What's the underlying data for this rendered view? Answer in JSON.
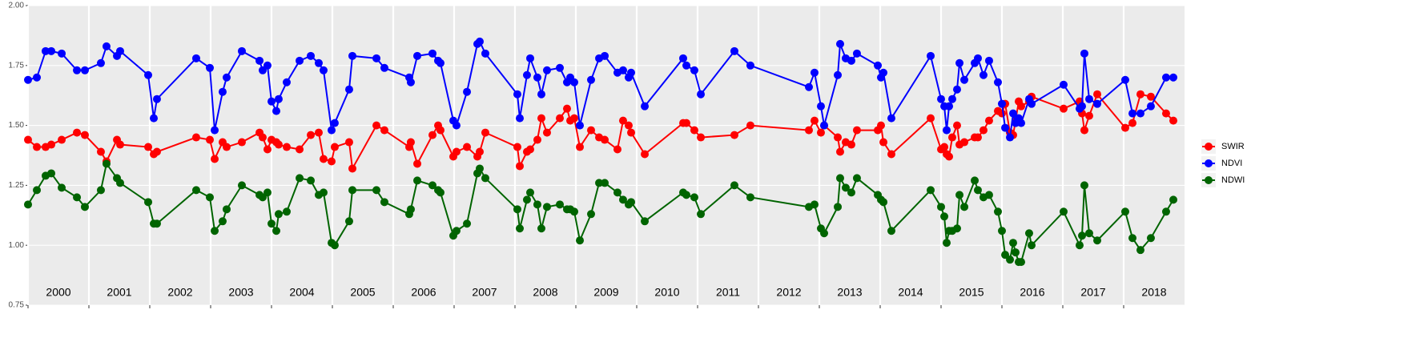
{
  "chart_data": {
    "type": "line",
    "x": [
      2000.0,
      2000.145,
      2000.289,
      2000.382,
      2000.553,
      2000.803,
      2000.934,
      2001.197,
      2001.289,
      2001.461,
      2001.513,
      2001.974,
      2002.066,
      2002.118,
      2002.763,
      2002.987,
      2003.066,
      2003.197,
      2003.263,
      2003.513,
      2003.803,
      2003.855,
      2003.934,
      2004.0,
      2004.079,
      2004.118,
      2004.25,
      2004.461,
      2004.645,
      2004.776,
      2004.855,
      2004.987,
      2005.039,
      2005.276,
      2005.329,
      2005.724,
      2005.855,
      2006.263,
      2006.289,
      2006.395,
      2006.645,
      2006.737,
      2006.776,
      2006.987,
      2007.039,
      2007.211,
      2007.382,
      2007.421,
      2007.513,
      2008.039,
      2008.079,
      2008.197,
      2008.25,
      2008.368,
      2008.434,
      2008.526,
      2008.737,
      2008.855,
      2008.908,
      2008.974,
      2009.066,
      2009.25,
      2009.382,
      2009.474,
      2009.684,
      2009.776,
      2009.868,
      2009.908,
      2010.132,
      2010.763,
      2010.816,
      2010.947,
      2011.053,
      2011.605,
      2011.868,
      2012.829,
      2012.921,
      2013.026,
      2013.079,
      2013.303,
      2013.342,
      2013.434,
      2013.526,
      2013.618,
      2013.961,
      2014.013,
      2014.053,
      2014.184,
      2014.829,
      2015.0,
      2015.053,
      2015.092,
      2015.132,
      2015.184,
      2015.263,
      2015.303,
      2015.382,
      2015.553,
      2015.605,
      2015.697,
      2015.789,
      2015.934,
      2016.0,
      2016.053,
      2016.132,
      2016.184,
      2016.224,
      2016.276,
      2016.316,
      2016.447,
      2016.487,
      2017.013,
      2017.276,
      2017.316,
      2017.355,
      2017.434,
      2017.566,
      2018.026,
      2018.145,
      2018.276,
      2018.447,
      2018.697,
      2018.816
    ],
    "series": [
      {
        "name": "SWIR",
        "color": "#ff0000",
        "values": [
          1.44,
          1.41,
          1.41,
          1.42,
          1.44,
          1.47,
          1.46,
          1.39,
          1.35,
          1.44,
          1.42,
          1.41,
          1.38,
          1.39,
          1.45,
          1.44,
          1.36,
          1.43,
          1.41,
          1.43,
          1.47,
          1.45,
          1.4,
          1.44,
          1.43,
          1.42,
          1.41,
          1.4,
          1.46,
          1.47,
          1.36,
          1.35,
          1.41,
          1.43,
          1.32,
          1.5,
          1.48,
          1.41,
          1.43,
          1.34,
          1.46,
          1.5,
          1.48,
          1.37,
          1.39,
          1.41,
          1.37,
          1.39,
          1.47,
          1.41,
          1.33,
          1.39,
          1.4,
          1.44,
          1.53,
          1.47,
          1.53,
          1.57,
          1.52,
          1.53,
          1.41,
          1.48,
          1.45,
          1.44,
          1.4,
          1.52,
          1.5,
          1.47,
          1.38,
          1.51,
          1.51,
          1.48,
          1.45,
          1.46,
          1.5,
          1.48,
          1.52,
          1.47,
          1.5,
          1.45,
          1.39,
          1.43,
          1.42,
          1.48,
          1.48,
          1.5,
          1.43,
          1.38,
          1.53,
          1.4,
          1.41,
          1.38,
          1.37,
          1.45,
          1.5,
          1.42,
          1.43,
          1.45,
          1.45,
          1.48,
          1.52,
          1.56,
          1.55,
          1.59,
          1.47,
          1.46,
          1.52,
          1.6,
          1.58,
          1.6,
          1.62,
          1.57,
          1.6,
          1.55,
          1.48,
          1.54,
          1.63,
          1.49,
          1.51,
          1.63,
          1.62,
          1.55,
          1.52
        ]
      },
      {
        "name": "NDVI",
        "color": "#0000ff",
        "values": [
          1.69,
          1.7,
          1.81,
          1.81,
          1.8,
          1.73,
          1.73,
          1.76,
          1.83,
          1.79,
          1.81,
          1.71,
          1.53,
          1.61,
          1.78,
          1.74,
          1.48,
          1.64,
          1.7,
          1.81,
          1.77,
          1.73,
          1.75,
          1.6,
          1.56,
          1.61,
          1.68,
          1.77,
          1.79,
          1.76,
          1.73,
          1.48,
          1.51,
          1.65,
          1.79,
          1.78,
          1.74,
          1.7,
          1.68,
          1.79,
          1.8,
          1.77,
          1.76,
          1.52,
          1.5,
          1.64,
          1.84,
          1.85,
          1.8,
          1.63,
          1.53,
          1.71,
          1.78,
          1.7,
          1.63,
          1.73,
          1.74,
          1.68,
          1.7,
          1.68,
          1.5,
          1.69,
          1.78,
          1.79,
          1.72,
          1.73,
          1.7,
          1.72,
          1.58,
          1.78,
          1.75,
          1.73,
          1.63,
          1.81,
          1.75,
          1.66,
          1.72,
          1.58,
          1.5,
          1.71,
          1.84,
          1.78,
          1.77,
          1.8,
          1.75,
          1.7,
          1.72,
          1.53,
          1.79,
          1.61,
          1.58,
          1.48,
          1.58,
          1.61,
          1.65,
          1.76,
          1.69,
          1.76,
          1.78,
          1.71,
          1.77,
          1.68,
          1.59,
          1.49,
          1.45,
          1.55,
          1.51,
          1.53,
          1.51,
          1.61,
          1.59,
          1.67,
          1.57,
          1.58,
          1.8,
          1.61,
          1.59,
          1.69,
          1.55,
          1.55,
          1.58,
          1.7,
          1.7
        ]
      },
      {
        "name": "NDWI",
        "color": "#006400",
        "values": [
          1.17,
          1.23,
          1.29,
          1.3,
          1.24,
          1.2,
          1.16,
          1.23,
          1.34,
          1.28,
          1.26,
          1.18,
          1.09,
          1.09,
          1.23,
          1.2,
          1.06,
          1.1,
          1.15,
          1.25,
          1.21,
          1.2,
          1.22,
          1.09,
          1.06,
          1.13,
          1.14,
          1.28,
          1.27,
          1.21,
          1.22,
          1.01,
          1.0,
          1.1,
          1.23,
          1.23,
          1.18,
          1.13,
          1.15,
          1.27,
          1.25,
          1.23,
          1.22,
          1.04,
          1.06,
          1.09,
          1.3,
          1.32,
          1.28,
          1.15,
          1.07,
          1.19,
          1.22,
          1.17,
          1.07,
          1.16,
          1.17,
          1.15,
          1.15,
          1.14,
          1.02,
          1.13,
          1.26,
          1.26,
          1.22,
          1.19,
          1.17,
          1.18,
          1.1,
          1.22,
          1.21,
          1.2,
          1.13,
          1.25,
          1.2,
          1.16,
          1.17,
          1.07,
          1.05,
          1.16,
          1.28,
          1.24,
          1.22,
          1.28,
          1.21,
          1.19,
          1.18,
          1.06,
          1.23,
          1.16,
          1.12,
          1.01,
          1.06,
          1.06,
          1.07,
          1.21,
          1.16,
          1.27,
          1.23,
          1.2,
          1.21,
          1.14,
          1.06,
          0.96,
          0.94,
          1.01,
          0.97,
          0.93,
          0.93,
          1.05,
          1.0,
          1.14,
          1.0,
          1.04,
          1.25,
          1.05,
          1.02,
          1.14,
          1.03,
          0.98,
          1.03,
          1.14,
          1.19
        ]
      }
    ],
    "xlim": [
      2000,
      2019
    ],
    "xticks": [
      2000,
      2001,
      2002,
      2003,
      2004,
      2005,
      2006,
      2007,
      2008,
      2009,
      2010,
      2011,
      2012,
      2013,
      2014,
      2015,
      2016,
      2017,
      2018
    ],
    "ylim": [
      0.75,
      2.0
    ],
    "yticks": [
      {
        "value": 0.75,
        "label": "0.75"
      },
      {
        "value": 1.0,
        "label": "1.00"
      },
      {
        "value": 1.25,
        "label": "1.25"
      },
      {
        "value": 1.5,
        "label": "1.50"
      },
      {
        "value": 1.75,
        "label": "1.75"
      },
      {
        "value": 2.0,
        "label": "2.00"
      }
    ],
    "grid": true,
    "legend": "right"
  }
}
